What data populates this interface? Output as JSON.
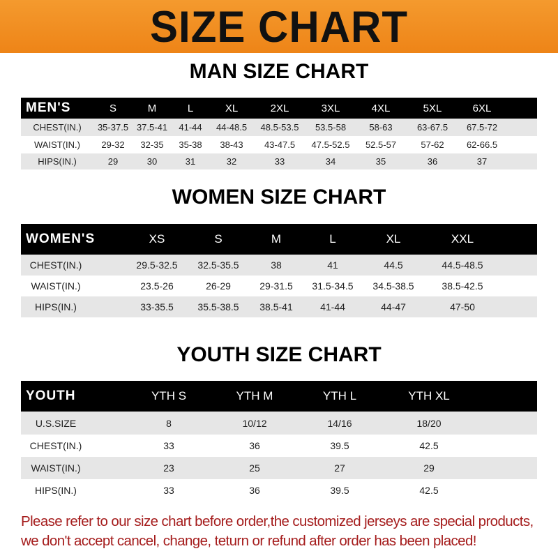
{
  "banner_title": "SIZE CHART",
  "men": {
    "title": "MAN SIZE CHART",
    "header_label": "MEN'S",
    "sizes": [
      "S",
      "M",
      "L",
      "XL",
      "2XL",
      "3XL",
      "4XL",
      "5XL",
      "6XL"
    ],
    "rows": [
      {
        "label": "CHEST(IN.)",
        "values": [
          "35-37.5",
          "37.5-41",
          "41-44",
          "44-48.5",
          "48.5-53.5",
          "53.5-58",
          "58-63",
          "63-67.5",
          "67.5-72"
        ]
      },
      {
        "label": "WAIST(IN.)",
        "values": [
          "29-32",
          "32-35",
          "35-38",
          "38-43",
          "43-47.5",
          "47.5-52.5",
          "52.5-57",
          "57-62",
          "62-66.5"
        ]
      },
      {
        "label": "HIPS(IN.)",
        "values": [
          "29",
          "30",
          "31",
          "32",
          "33",
          "34",
          "35",
          "36",
          "37"
        ]
      }
    ]
  },
  "women": {
    "title": "WOMEN SIZE CHART",
    "header_label": "WOMEN'S",
    "sizes": [
      "XS",
      "S",
      "M",
      "L",
      "XL",
      "XXL"
    ],
    "rows": [
      {
        "label": "CHEST(IN.)",
        "values": [
          "29.5-32.5",
          "32.5-35.5",
          "38",
          "41",
          "44.5",
          "44.5-48.5"
        ]
      },
      {
        "label": "WAIST(IN.)",
        "values": [
          "23.5-26",
          "26-29",
          "29-31.5",
          "31.5-34.5",
          "34.5-38.5",
          "38.5-42.5"
        ]
      },
      {
        "label": "HIPS(IN.)",
        "values": [
          "33-35.5",
          "35.5-38.5",
          "38.5-41",
          "41-44",
          "44-47",
          "47-50"
        ]
      }
    ]
  },
  "youth": {
    "title": "YOUTH SIZE CHART",
    "header_label": "YOUTH",
    "sizes": [
      "YTH S",
      "YTH M",
      "YTH L",
      "YTH XL"
    ],
    "rows": [
      {
        "label": "U.S.SIZE",
        "values": [
          "8",
          "10/12",
          "14/16",
          "18/20"
        ]
      },
      {
        "label": "CHEST(IN.)",
        "values": [
          "33",
          "36",
          "39.5",
          "42.5"
        ]
      },
      {
        "label": "WAIST(IN.)",
        "values": [
          "23",
          "25",
          "27",
          "29"
        ]
      },
      {
        "label": "HIPS(IN.)",
        "values": [
          "33",
          "36",
          "39.5",
          "42.5"
        ]
      }
    ]
  },
  "notice": {
    "line1": "Please refer to our size chart before order,the customized jerseys are special products,",
    "line2": "we don't accept cancel, change, teturn or refund after order has been placed!"
  },
  "colors": {
    "banner": "#ee8417",
    "header_row": "#000000",
    "stripe": "#e6e6e6",
    "notice": "#a51d1d"
  }
}
